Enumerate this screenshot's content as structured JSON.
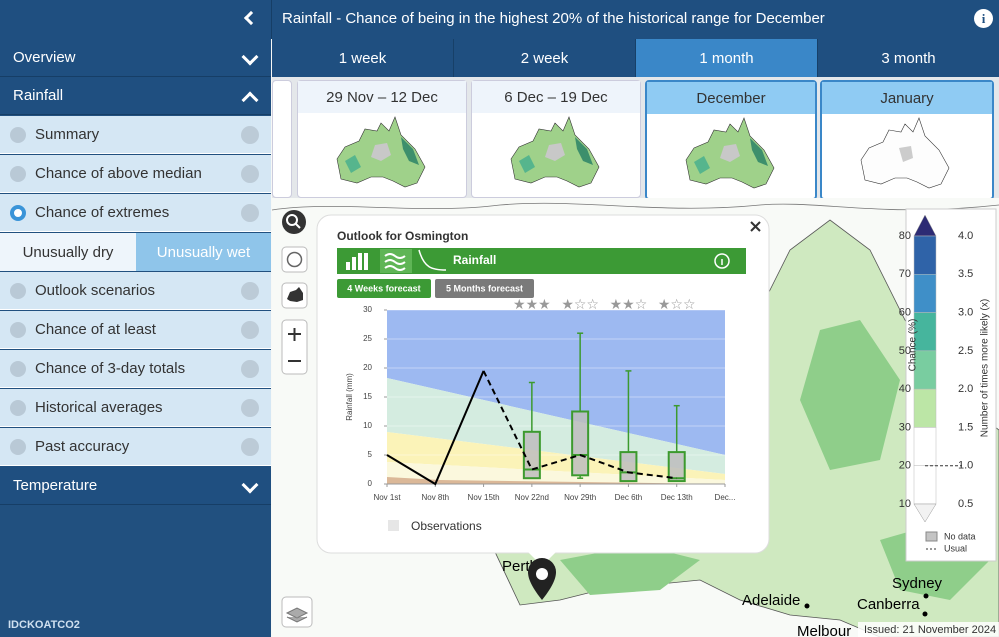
{
  "header": {
    "title": "Rainfall - Chance of being in the highest 20% of the historical range for December"
  },
  "sidebar": {
    "sections": [
      "Overview",
      "Rainfall",
      "Temperature"
    ],
    "items": [
      "Summary",
      "Chance of above median",
      "Chance of extremes",
      "Outlook scenarios",
      "Chance of at least",
      "Chance of 3-day totals",
      "Historical averages",
      "Past accuracy"
    ],
    "extremes_options": [
      "Unusually dry",
      "Unusually wet"
    ],
    "product_code": "IDCKOATCO2"
  },
  "tabs": [
    "1 week",
    "2 week",
    "1 month",
    "3 month"
  ],
  "periods": [
    "29 Nov – 12 Dec",
    "6 Dec – 19 Dec",
    "December",
    "January"
  ],
  "popup": {
    "title": "Outlook for Osmington",
    "variable": "Rainfall",
    "buttons": [
      "4 Weeks forecast",
      "5 Months forecast"
    ]
  },
  "chart_data": {
    "type": "box",
    "y_label": "Rainfall (mm)",
    "categories": [
      "Nov 1st",
      "Nov 8th",
      "Nov 15th",
      "Nov 22nd",
      "Nov 29th",
      "Dec 6th",
      "Dec 13th",
      "Dec..."
    ],
    "ylim": [
      0,
      30
    ],
    "yticks": [
      0,
      5,
      10,
      15,
      20,
      25,
      30
    ],
    "grid": true,
    "series": [
      {
        "name": "Observations",
        "color": "#000000",
        "values": [
          5,
          0,
          19.5,
          null,
          null,
          null,
          null,
          null
        ]
      }
    ],
    "forecast_line": {
      "color": "#000000",
      "values": [
        null,
        null,
        19.5,
        2.5,
        5,
        2,
        1,
        null
      ]
    },
    "boxes": {
      "color": "#3c9a2e",
      "min": [
        null,
        null,
        null,
        1,
        1,
        0.5,
        0.5,
        null
      ],
      "q1": [
        null,
        null,
        null,
        1,
        1.5,
        0.5,
        0.5,
        null
      ],
      "median": [
        null,
        null,
        null,
        2.5,
        5,
        2,
        1,
        null
      ],
      "q3": [
        null,
        null,
        null,
        9,
        12.5,
        5.5,
        5.5,
        null
      ],
      "max": [
        null,
        null,
        null,
        17.5,
        26,
        19.5,
        13.5,
        null
      ]
    },
    "ratings": [
      null,
      null,
      null,
      "★★★",
      "★☆☆",
      "★★☆",
      "★☆☆",
      null
    ]
  },
  "legend": {
    "title_left": "Chance (%)",
    "title_right": "Number of times more likely (x)",
    "chance_ticks": [
      80,
      70,
      60,
      50,
      40,
      30,
      20,
      10
    ],
    "times_ticks": [
      {
        "value": 4,
        "label": "4.0"
      },
      {
        "value": 3.5,
        "label": "3.5"
      },
      {
        "value": 3,
        "label": "3.0"
      },
      {
        "value": 2.5,
        "label": "2.5"
      },
      {
        "value": 2,
        "label": "2.0"
      },
      {
        "value": 1.5,
        "label": "1.5"
      },
      {
        "value": 1,
        "label": "1.0"
      },
      {
        "value": 0.5,
        "label": "0.5"
      }
    ],
    "colors": [
      "#2d2b74",
      "#2f63a8",
      "#3f8fc8",
      "#46b59d",
      "#79cda0",
      "#bce6a6",
      "#ffffff",
      "#ffffff",
      "#f2f2f2"
    ],
    "no_data": "No data",
    "usual": "Usual"
  },
  "map": {
    "cities": [
      "Perth",
      "Adelaide",
      "Sydney",
      "Canberra",
      "Melbour"
    ],
    "issued": "Issued: 21 November 2024"
  }
}
